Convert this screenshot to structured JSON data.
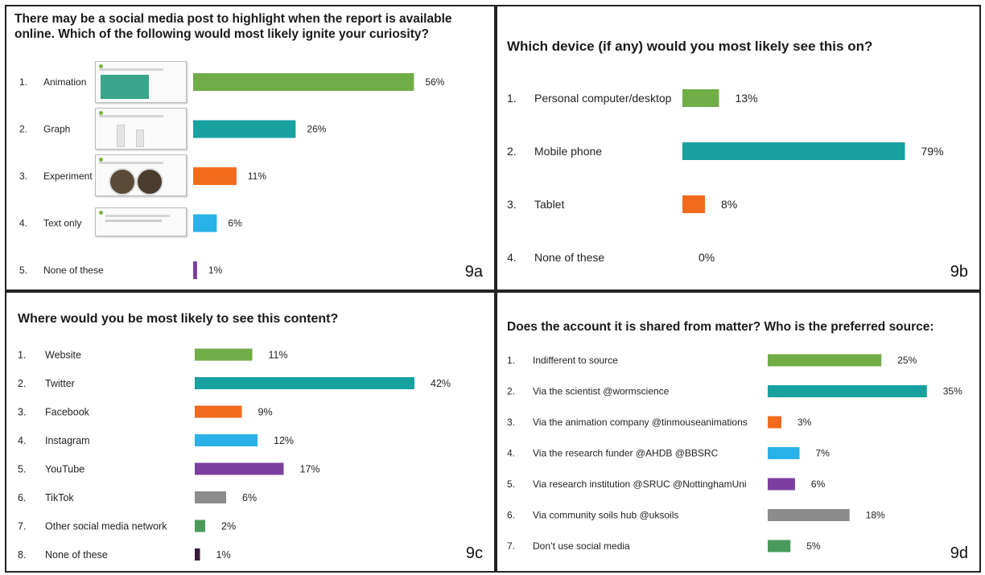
{
  "chart_data": [
    {
      "id": "9a",
      "type": "bar",
      "title": "There may be a social media post to highlight when the report is available online.  Which of the following would most likely ignite your curiosity?",
      "panel_label": "9a",
      "numbers": [
        "1.",
        "2.",
        "3.",
        "4.",
        "5."
      ],
      "categories": [
        "Animation",
        "Graph",
        "Experiment",
        "Text only",
        "None of these"
      ],
      "values": [
        56,
        26,
        11,
        6,
        1
      ],
      "value_labels": [
        "56%",
        "26%",
        "11%",
        "6%",
        "1%"
      ],
      "colors": [
        "#70ad47",
        "#17a2a0",
        "#f26b1d",
        "#29b2e8",
        "#7b3fa0"
      ],
      "ylim": [
        0,
        100
      ]
    },
    {
      "id": "9b",
      "type": "bar",
      "title": "Which device (if any) would you most likely see this on?",
      "panel_label": "9b",
      "numbers": [
        "1.",
        "2.",
        "3.",
        "4."
      ],
      "categories": [
        "Personal computer/desktop",
        "Mobile phone",
        "Tablet",
        "None of these"
      ],
      "values": [
        13,
        79,
        8,
        0
      ],
      "value_labels": [
        "13%",
        "79%",
        "8%",
        "0%"
      ],
      "colors": [
        "#70ad47",
        "#17a2a0",
        "#f26b1d",
        "#29b2e8"
      ],
      "ylim": [
        0,
        100
      ]
    },
    {
      "id": "9c",
      "type": "bar",
      "title": "Where would you be most likely to see this content?",
      "panel_label": "9c",
      "numbers": [
        "1.",
        "2.",
        "3.",
        "4.",
        "5.",
        "6.",
        "7.",
        "8."
      ],
      "categories": [
        "Website",
        "Twitter",
        "Facebook",
        "Instagram",
        "YouTube",
        "TikTok",
        "Other social media network",
        "None of these"
      ],
      "values": [
        11,
        42,
        9,
        12,
        17,
        6,
        2,
        1
      ],
      "value_labels": [
        "11%",
        "42%",
        "9%",
        "12%",
        "17%",
        "6%",
        "2%",
        "1%"
      ],
      "colors": [
        "#70ad47",
        "#17a2a0",
        "#f26b1d",
        "#29b2e8",
        "#7b3fa0",
        "#8c8c8c",
        "#4a9a5c",
        "#3d1a3d"
      ],
      "ylim": [
        0,
        100
      ]
    },
    {
      "id": "9d",
      "type": "bar",
      "title": "Does the account it is shared from matter?  Who is the preferred source:",
      "panel_label": "9d",
      "numbers": [
        "1.",
        "2.",
        "3.",
        "4.",
        "5.",
        "6.",
        "7."
      ],
      "categories": [
        "Indifferent to source",
        "Via the scientist @wormscience",
        "Via the animation company @tinmouseanimations",
        "Via the research funder @AHDB @BBSRC",
        "Via research institution @SRUC @NottinghamUni",
        "Via community soils hub @uksoils",
        "Don’t use social media"
      ],
      "values": [
        25,
        35,
        3,
        7,
        6,
        18,
        5
      ],
      "value_labels": [
        "25%",
        "35%",
        "3%",
        "7%",
        "6%",
        "18%",
        "5%"
      ],
      "colors": [
        "#70ad47",
        "#17a2a0",
        "#f26b1d",
        "#29b2e8",
        "#7b3fa0",
        "#8c8c8c",
        "#4a9a5c"
      ],
      "ylim": [
        0,
        100
      ]
    }
  ]
}
